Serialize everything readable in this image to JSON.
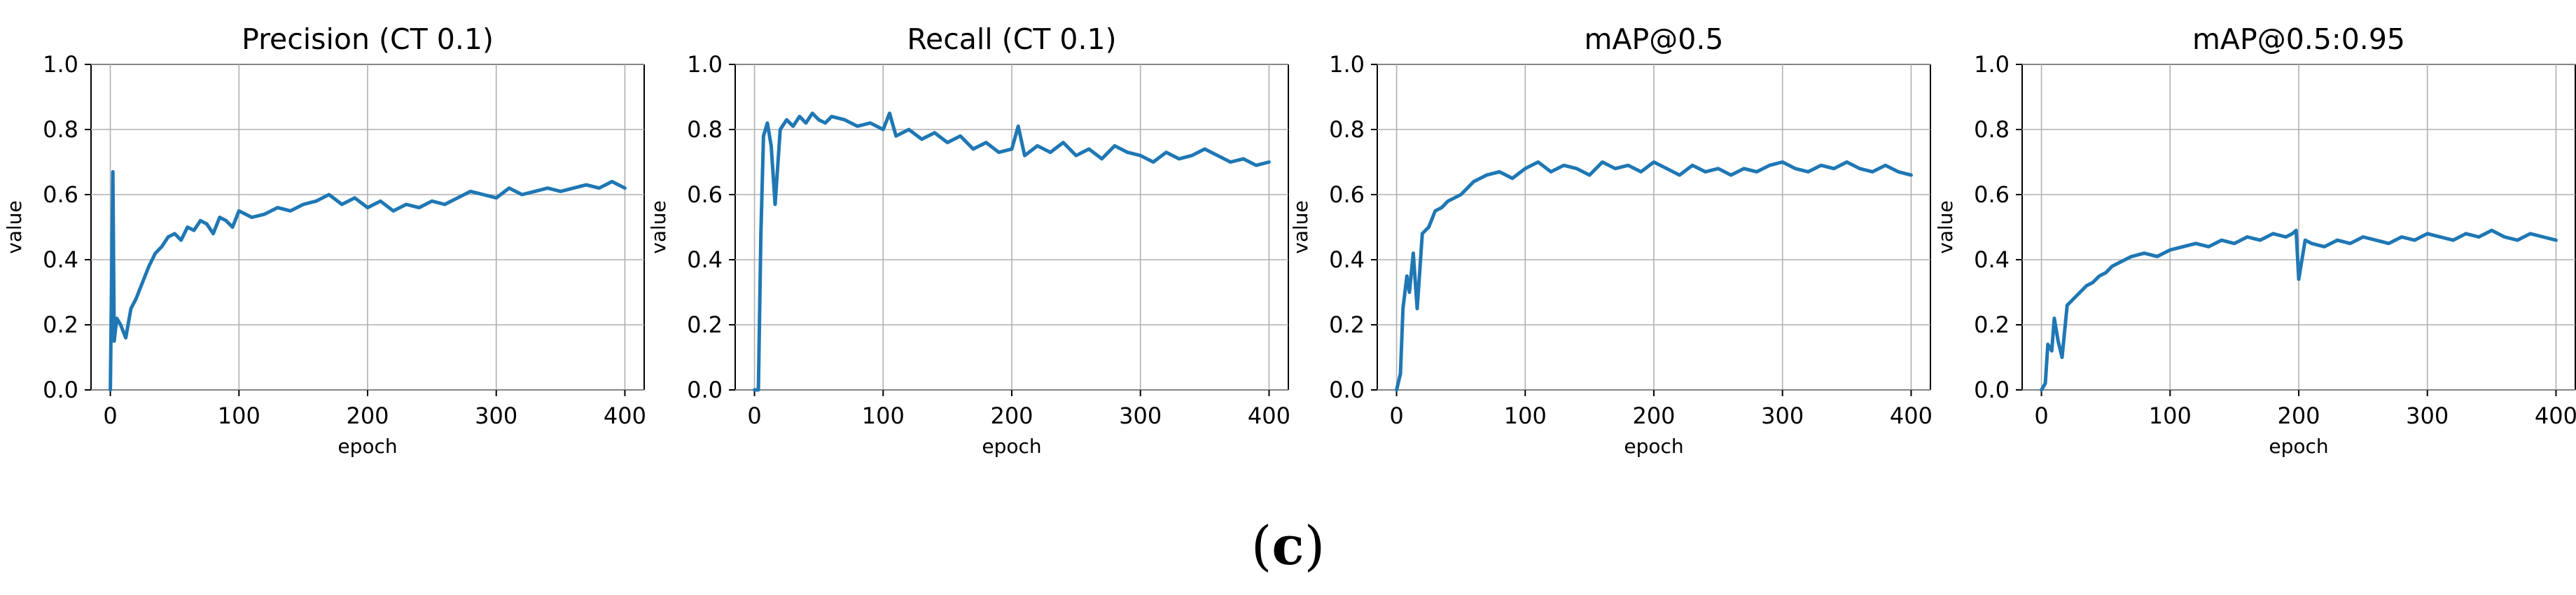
{
  "figure_caption": {
    "open": "(",
    "label": "c",
    "close": ")"
  },
  "chart_data": [
    {
      "type": "line",
      "title": "Precision (CT 0.1)",
      "xlabel": "epoch",
      "ylabel": "value",
      "xlim": [
        -15,
        415
      ],
      "ylim": [
        0,
        1
      ],
      "xticks": [
        0,
        100,
        200,
        300,
        400
      ],
      "yticks": [
        0.0,
        0.2,
        0.4,
        0.6,
        0.8,
        1.0
      ],
      "xtick_labels": [
        "0",
        "100",
        "200",
        "300",
        "400"
      ],
      "ytick_labels": [
        "0.0",
        "0.2",
        "0.4",
        "0.6",
        "0.8",
        "1.0"
      ],
      "grid": true,
      "series": [
        {
          "name": "Precision (CT 0.1)",
          "color": "#1f77b4",
          "x": [
            0,
            2,
            3,
            5,
            8,
            12,
            16,
            20,
            25,
            30,
            35,
            40,
            45,
            50,
            55,
            60,
            65,
            70,
            75,
            80,
            85,
            90,
            95,
            100,
            110,
            120,
            130,
            140,
            150,
            160,
            170,
            180,
            190,
            200,
            210,
            220,
            230,
            240,
            250,
            260,
            270,
            280,
            290,
            300,
            310,
            320,
            330,
            340,
            350,
            360,
            370,
            380,
            390,
            400
          ],
          "values": [
            0.0,
            0.67,
            0.15,
            0.22,
            0.2,
            0.16,
            0.25,
            0.28,
            0.33,
            0.38,
            0.42,
            0.44,
            0.47,
            0.48,
            0.46,
            0.5,
            0.49,
            0.52,
            0.51,
            0.48,
            0.53,
            0.52,
            0.5,
            0.55,
            0.53,
            0.54,
            0.56,
            0.55,
            0.57,
            0.58,
            0.6,
            0.57,
            0.59,
            0.56,
            0.58,
            0.55,
            0.57,
            0.56,
            0.58,
            0.57,
            0.59,
            0.61,
            0.6,
            0.59,
            0.62,
            0.6,
            0.61,
            0.62,
            0.61,
            0.62,
            0.63,
            0.62,
            0.64,
            0.62
          ]
        }
      ]
    },
    {
      "type": "line",
      "title": "Recall (CT 0.1)",
      "xlabel": "epoch",
      "ylabel": "value",
      "xlim": [
        -15,
        415
      ],
      "ylim": [
        0,
        1
      ],
      "xticks": [
        0,
        100,
        200,
        300,
        400
      ],
      "yticks": [
        0.0,
        0.2,
        0.4,
        0.6,
        0.8,
        1.0
      ],
      "xtick_labels": [
        "0",
        "100",
        "200",
        "300",
        "400"
      ],
      "ytick_labels": [
        "0.0",
        "0.2",
        "0.4",
        "0.6",
        "0.8",
        "1.0"
      ],
      "grid": true,
      "series": [
        {
          "name": "Recall (CT 0.1)",
          "color": "#1f77b4",
          "x": [
            0,
            3,
            5,
            7,
            10,
            13,
            16,
            20,
            25,
            30,
            35,
            40,
            45,
            50,
            55,
            60,
            70,
            80,
            90,
            100,
            105,
            110,
            120,
            130,
            140,
            150,
            160,
            170,
            180,
            190,
            200,
            205,
            210,
            220,
            230,
            240,
            250,
            260,
            270,
            280,
            290,
            300,
            310,
            320,
            330,
            340,
            350,
            360,
            370,
            380,
            390,
            400
          ],
          "values": [
            0.0,
            0.0,
            0.48,
            0.78,
            0.82,
            0.75,
            0.57,
            0.8,
            0.83,
            0.81,
            0.84,
            0.82,
            0.85,
            0.83,
            0.82,
            0.84,
            0.83,
            0.81,
            0.82,
            0.8,
            0.85,
            0.78,
            0.8,
            0.77,
            0.79,
            0.76,
            0.78,
            0.74,
            0.76,
            0.73,
            0.74,
            0.81,
            0.72,
            0.75,
            0.73,
            0.76,
            0.72,
            0.74,
            0.71,
            0.75,
            0.73,
            0.72,
            0.7,
            0.73,
            0.71,
            0.72,
            0.74,
            0.72,
            0.7,
            0.71,
            0.69,
            0.7
          ]
        }
      ]
    },
    {
      "type": "line",
      "title": "mAP@0.5",
      "xlabel": "epoch",
      "ylabel": "value",
      "xlim": [
        -15,
        415
      ],
      "ylim": [
        0,
        1
      ],
      "xticks": [
        0,
        100,
        200,
        300,
        400
      ],
      "yticks": [
        0.0,
        0.2,
        0.4,
        0.6,
        0.8,
        1.0
      ],
      "xtick_labels": [
        "0",
        "100",
        "200",
        "300",
        "400"
      ],
      "ytick_labels": [
        "0.0",
        "0.2",
        "0.4",
        "0.6",
        "0.8",
        "1.0"
      ],
      "grid": true,
      "series": [
        {
          "name": "mAP@0.5",
          "color": "#1f77b4",
          "x": [
            0,
            3,
            5,
            8,
            10,
            13,
            16,
            20,
            25,
            30,
            35,
            40,
            45,
            50,
            55,
            60,
            70,
            80,
            90,
            100,
            110,
            120,
            130,
            140,
            150,
            160,
            170,
            180,
            190,
            200,
            210,
            220,
            230,
            240,
            250,
            260,
            270,
            280,
            290,
            300,
            310,
            320,
            330,
            340,
            350,
            360,
            370,
            380,
            390,
            400
          ],
          "values": [
            0.0,
            0.05,
            0.25,
            0.35,
            0.3,
            0.42,
            0.25,
            0.48,
            0.5,
            0.55,
            0.56,
            0.58,
            0.59,
            0.6,
            0.62,
            0.64,
            0.66,
            0.67,
            0.65,
            0.68,
            0.7,
            0.67,
            0.69,
            0.68,
            0.66,
            0.7,
            0.68,
            0.69,
            0.67,
            0.7,
            0.68,
            0.66,
            0.69,
            0.67,
            0.68,
            0.66,
            0.68,
            0.67,
            0.69,
            0.7,
            0.68,
            0.67,
            0.69,
            0.68,
            0.7,
            0.68,
            0.67,
            0.69,
            0.67,
            0.66
          ]
        }
      ]
    },
    {
      "type": "line",
      "title": "mAP@0.5:0.95",
      "xlabel": "epoch",
      "ylabel": "value",
      "xlim": [
        -15,
        415
      ],
      "ylim": [
        0,
        1
      ],
      "xticks": [
        0,
        100,
        200,
        300,
        400
      ],
      "yticks": [
        0.0,
        0.2,
        0.4,
        0.6,
        0.8,
        1.0
      ],
      "xtick_labels": [
        "0",
        "100",
        "200",
        "300",
        "400"
      ],
      "ytick_labels": [
        "0.0",
        "0.2",
        "0.4",
        "0.6",
        "0.8",
        "1.0"
      ],
      "grid": true,
      "series": [
        {
          "name": "mAP@0.5:0.95",
          "color": "#1f77b4",
          "x": [
            0,
            3,
            5,
            8,
            10,
            13,
            16,
            20,
            25,
            30,
            35,
            40,
            45,
            50,
            55,
            60,
            70,
            80,
            90,
            100,
            110,
            120,
            130,
            140,
            150,
            160,
            170,
            180,
            190,
            195,
            198,
            200,
            205,
            210,
            220,
            230,
            240,
            250,
            260,
            270,
            280,
            290,
            300,
            310,
            320,
            330,
            340,
            350,
            360,
            370,
            380,
            390,
            400
          ],
          "values": [
            0.0,
            0.02,
            0.14,
            0.12,
            0.22,
            0.15,
            0.1,
            0.26,
            0.28,
            0.3,
            0.32,
            0.33,
            0.35,
            0.36,
            0.38,
            0.39,
            0.41,
            0.42,
            0.41,
            0.43,
            0.44,
            0.45,
            0.44,
            0.46,
            0.45,
            0.47,
            0.46,
            0.48,
            0.47,
            0.48,
            0.49,
            0.34,
            0.46,
            0.45,
            0.44,
            0.46,
            0.45,
            0.47,
            0.46,
            0.45,
            0.47,
            0.46,
            0.48,
            0.47,
            0.46,
            0.48,
            0.47,
            0.49,
            0.47,
            0.46,
            0.48,
            0.47,
            0.46
          ]
        }
      ]
    }
  ]
}
